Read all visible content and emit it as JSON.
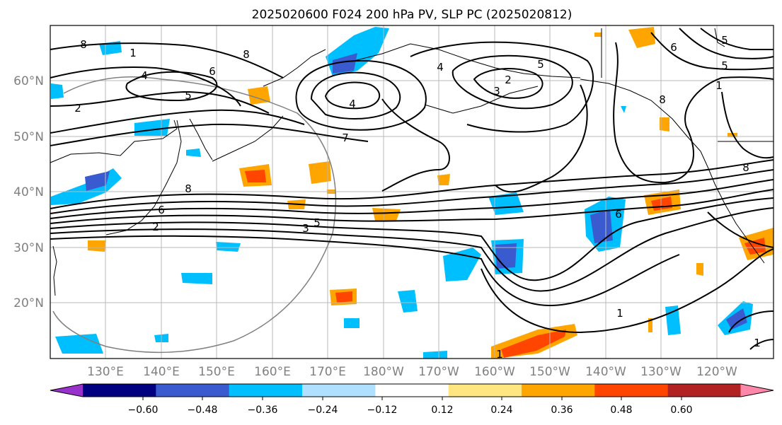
{
  "title": "2025020600 F024 200 hPa PV, SLP PC (2025020812)",
  "lat_labels": [
    "60°N",
    "50°N",
    "40°N",
    "30°N",
    "20°N"
  ],
  "lon_labels": [
    "130°E",
    "140°E",
    "150°E",
    "160°E",
    "170°E",
    "180°W",
    "170°W",
    "160°W",
    "150°W",
    "140°W",
    "130°W",
    "120°W"
  ],
  "colorbar": {
    "ticks": [
      "−0.60",
      "−0.48",
      "−0.36",
      "−0.24",
      "−0.12",
      "0.12",
      "0.24",
      "0.36",
      "0.48",
      "0.60"
    ],
    "colors": [
      "#9932cc",
      "#000080",
      "#3a5bd0",
      "#00bfff",
      "#b0e0ff",
      "#ffffff",
      "#ffe680",
      "#ffa500",
      "#ff4500",
      "#b22222",
      "#ff88aa"
    ]
  },
  "contour_labels": [
    "8",
    "1",
    "6",
    "4",
    "5",
    "2",
    "8",
    "4",
    "7",
    "2",
    "3",
    "5",
    "4",
    "6",
    "5",
    "1",
    "8",
    "8",
    "6",
    "2",
    "3",
    "5",
    "6",
    "1",
    "1",
    "8",
    "1",
    "5"
  ]
}
